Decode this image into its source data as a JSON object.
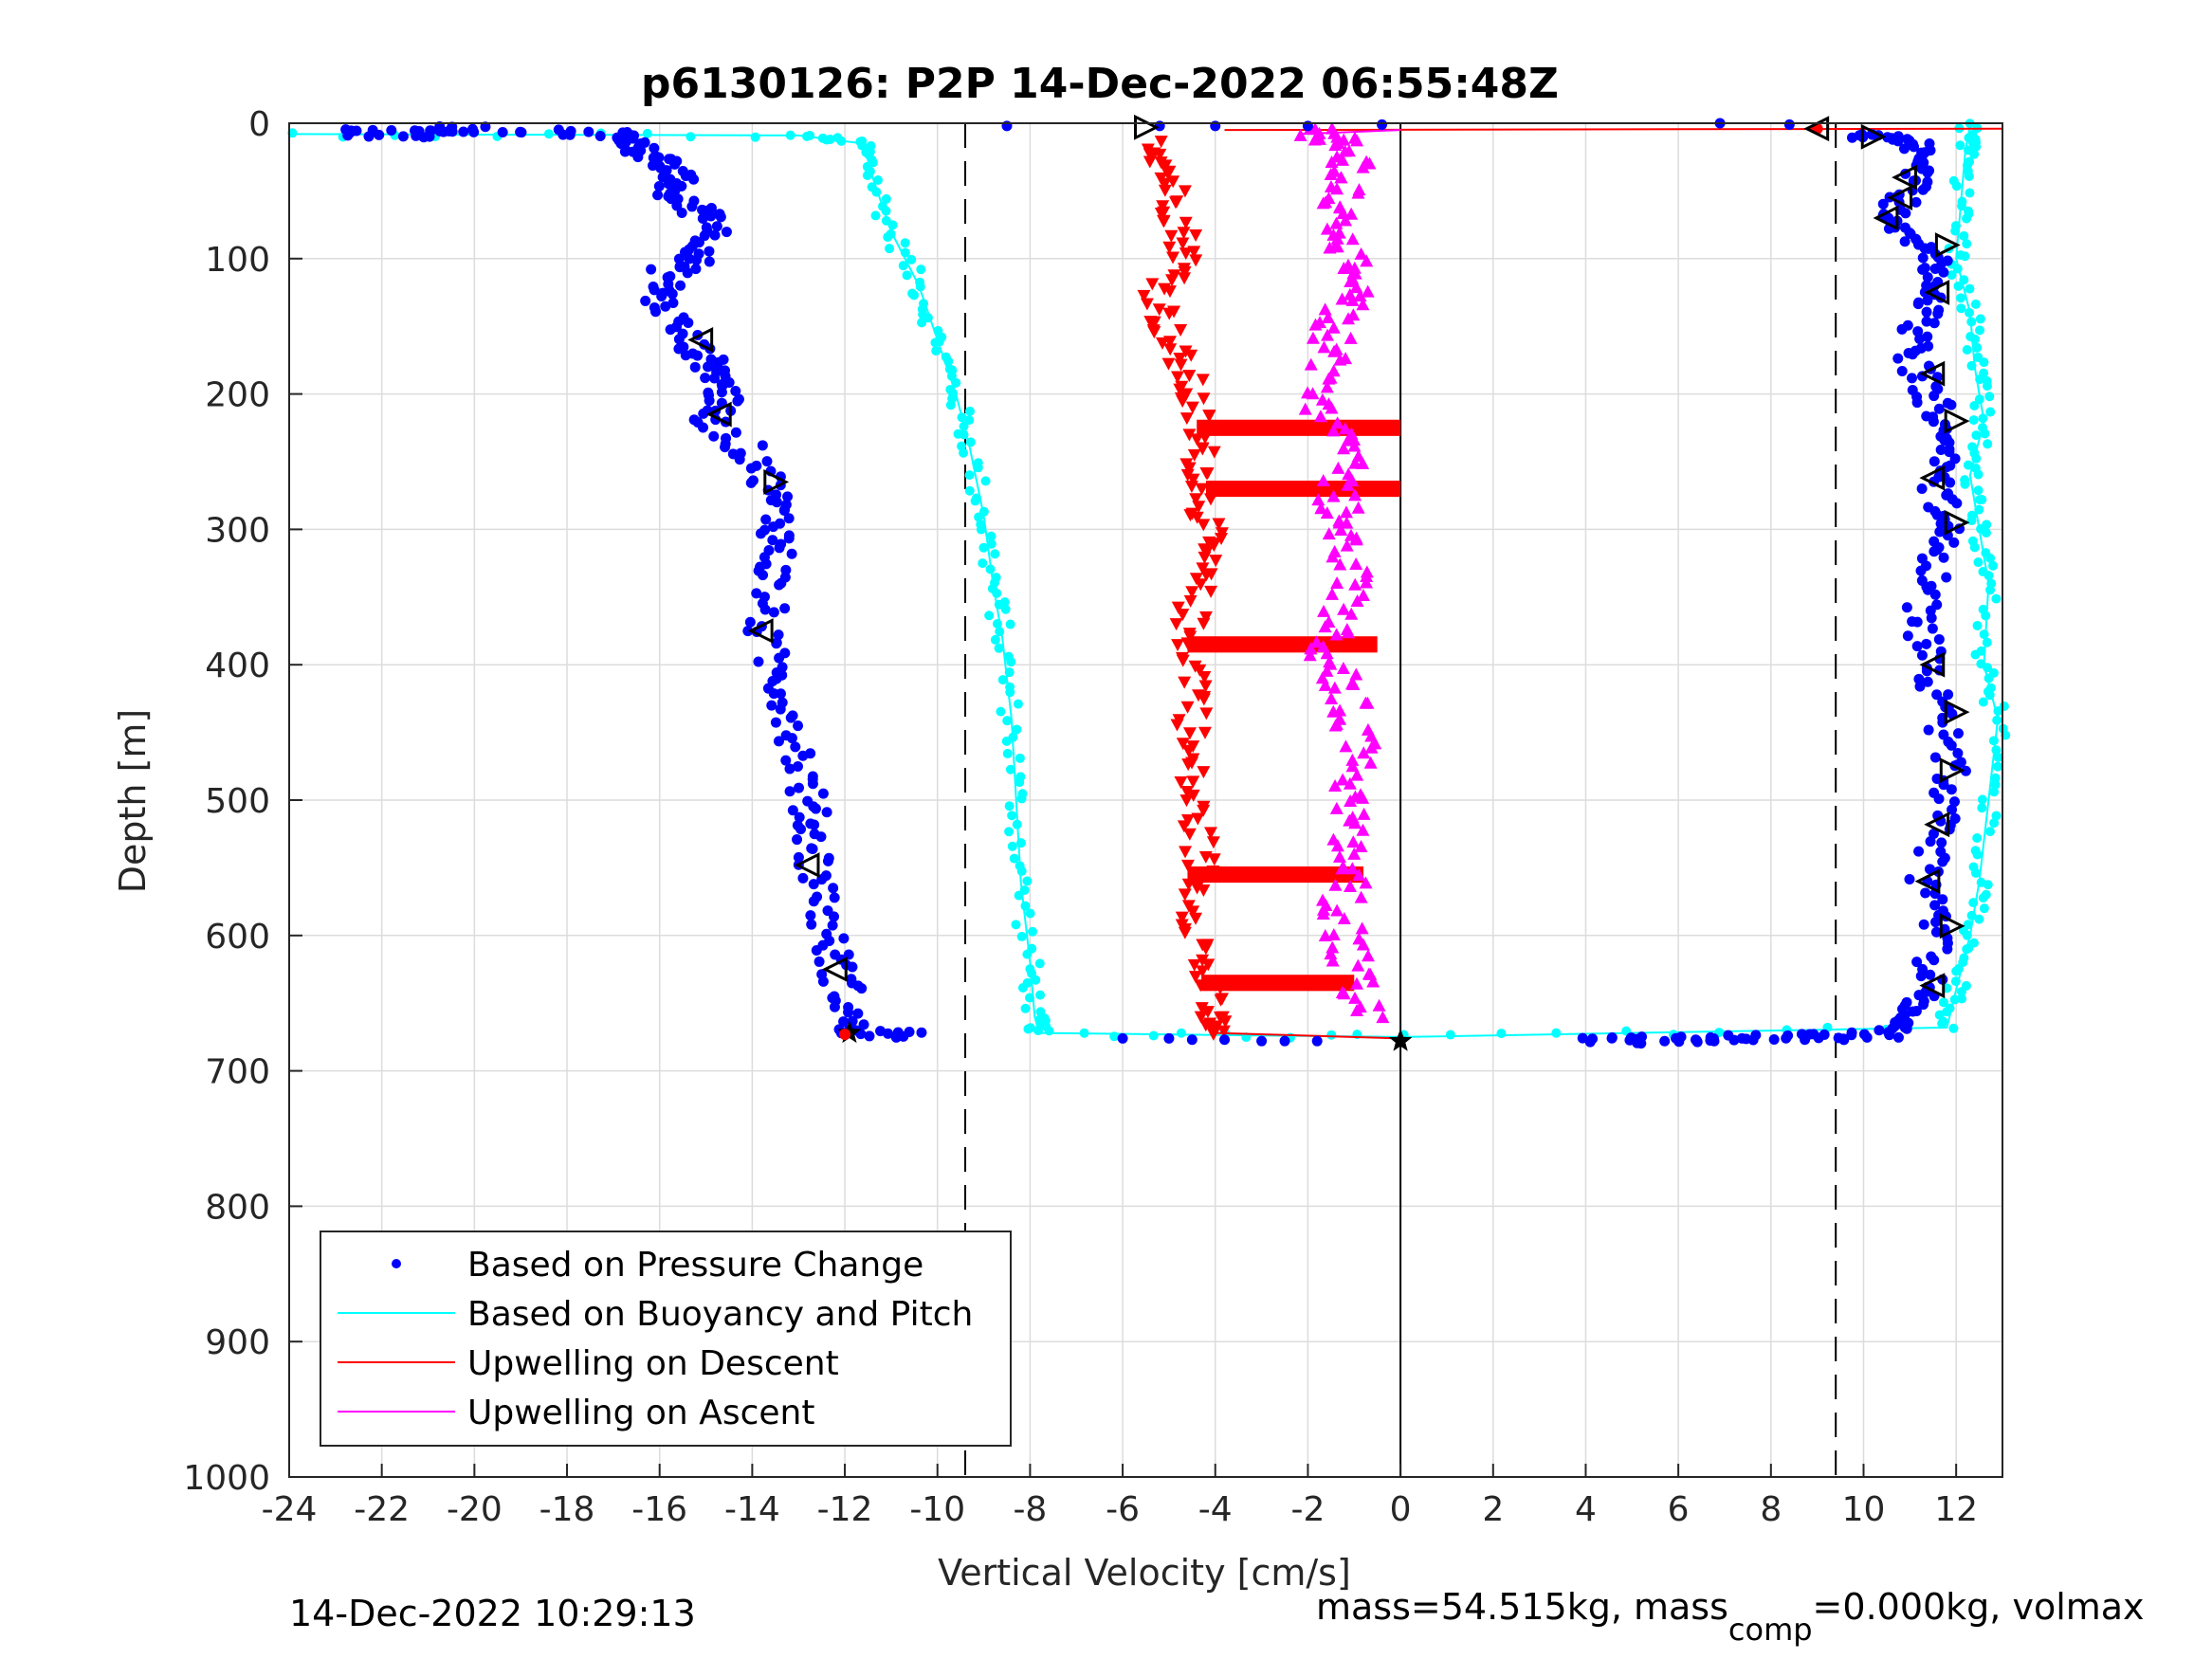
{
  "chart_data": {
    "type": "scatter",
    "title": "p6130126: P2P 14-Dec-2022 06:55:48Z",
    "xlabel": "Vertical Velocity [cm/s]",
    "ylabel": "Depth [m]",
    "xlim": [
      -24,
      13
    ],
    "ylim": [
      0,
      1000
    ],
    "y_reversed": true,
    "grid": true,
    "x_ticks": [
      -24,
      -22,
      -20,
      -18,
      -16,
      -14,
      -12,
      -10,
      -8,
      -6,
      -4,
      -2,
      0,
      2,
      4,
      6,
      8,
      10,
      12
    ],
    "y_ticks": [
      0,
      100,
      200,
      300,
      400,
      500,
      600,
      700,
      800,
      900,
      1000
    ],
    "reference_lines": {
      "dashed_x": [
        -9.4,
        9.4
      ],
      "solid_x": [
        0
      ]
    },
    "legend_position": "bottom-left",
    "series": [
      {
        "name": "Based on Pressure Change",
        "color": "#0000ff",
        "marker": "dot",
        "descent": [
          [
            -23,
            7
          ],
          [
            -21.2,
            8
          ],
          [
            -20.5,
            4
          ],
          [
            -17,
            8
          ],
          [
            -16.5,
            15
          ],
          [
            -16.2,
            25
          ],
          [
            -15.6,
            40
          ],
          [
            -15.8,
            55
          ],
          [
            -14.7,
            70
          ],
          [
            -15.0,
            95
          ],
          [
            -15.8,
            110
          ],
          [
            -16.0,
            130
          ],
          [
            -15.4,
            160
          ],
          [
            -14.8,
            180
          ],
          [
            -14.6,
            200
          ],
          [
            -14.9,
            220
          ],
          [
            -13.8,
            250
          ],
          [
            -13.5,
            280
          ],
          [
            -13.4,
            310
          ],
          [
            -13.6,
            340
          ],
          [
            -13.8,
            380
          ],
          [
            -13.3,
            420
          ],
          [
            -13.0,
            460
          ],
          [
            -12.8,
            500
          ],
          [
            -12.7,
            530
          ],
          [
            -12.5,
            570
          ],
          [
            -12.3,
            610
          ],
          [
            -12.0,
            640
          ],
          [
            -11.9,
            672
          ],
          [
            -10.5,
            674
          ]
        ],
        "ascent": [
          [
            4,
            678
          ],
          [
            5.5,
            677
          ],
          [
            7,
            676
          ],
          [
            9,
            675
          ],
          [
            10.5,
            673
          ],
          [
            11.0,
            660
          ],
          [
            11.4,
            640
          ],
          [
            11.5,
            600
          ],
          [
            11.3,
            560
          ],
          [
            11.6,
            520
          ],
          [
            11.9,
            480
          ],
          [
            11.7,
            440
          ],
          [
            11.4,
            400
          ],
          [
            11.2,
            360
          ],
          [
            11.6,
            320
          ],
          [
            11.8,
            290
          ],
          [
            11.5,
            260
          ],
          [
            11.9,
            230
          ],
          [
            11.4,
            200
          ],
          [
            11.0,
            170
          ],
          [
            11.3,
            140
          ],
          [
            11.6,
            110
          ],
          [
            11.2,
            90
          ],
          [
            10.6,
            70
          ],
          [
            11.0,
            50
          ],
          [
            11.5,
            25
          ],
          [
            10.8,
            10
          ],
          [
            9.9,
            8
          ]
        ]
      },
      {
        "name": "Based on Buoyancy and Pitch",
        "color": "#00ffff",
        "marker": "line",
        "descent": [
          [
            -24,
            8
          ],
          [
            -13,
            9
          ],
          [
            -11.6,
            15
          ],
          [
            -11.4,
            40
          ],
          [
            -11.0,
            80
          ],
          [
            -10.4,
            120
          ],
          [
            -10.0,
            160
          ],
          [
            -9.6,
            200
          ],
          [
            -9.3,
            240
          ],
          [
            -9.0,
            290
          ],
          [
            -8.8,
            340
          ],
          [
            -8.6,
            380
          ],
          [
            -8.4,
            440
          ],
          [
            -8.3,
            500
          ],
          [
            -8.2,
            560
          ],
          [
            -8.0,
            620
          ],
          [
            -7.9,
            660
          ],
          [
            -7.8,
            672
          ],
          [
            0,
            675
          ]
        ],
        "ascent": [
          [
            0,
            675
          ],
          [
            11.8,
            668
          ],
          [
            12.0,
            640
          ],
          [
            12.3,
            600
          ],
          [
            12.5,
            560
          ],
          [
            12.7,
            500
          ],
          [
            12.9,
            440
          ],
          [
            12.6,
            400
          ],
          [
            12.7,
            340
          ],
          [
            12.5,
            300
          ],
          [
            12.3,
            260
          ],
          [
            12.6,
            220
          ],
          [
            12.4,
            180
          ],
          [
            12.3,
            140
          ],
          [
            12.0,
            100
          ],
          [
            12.1,
            60
          ],
          [
            12.2,
            20
          ],
          [
            12.3,
            2
          ]
        ]
      },
      {
        "name": "Upwelling on Descent",
        "color": "#ff0000",
        "marker": "triangle-down",
        "profile": [
          [
            -5.2,
            15
          ],
          [
            -5.0,
            40
          ],
          [
            -4.8,
            70
          ],
          [
            -4.6,
            100
          ],
          [
            -5.2,
            130
          ],
          [
            -5.0,
            160
          ],
          [
            -4.6,
            190
          ],
          [
            -4.4,
            220
          ],
          [
            -4.3,
            250
          ],
          [
            -4.2,
            280
          ],
          [
            -4.2,
            310
          ],
          [
            -4.4,
            340
          ],
          [
            -4.6,
            380
          ],
          [
            -4.3,
            420
          ],
          [
            -4.6,
            460
          ],
          [
            -4.5,
            500
          ],
          [
            -4.3,
            540
          ],
          [
            -4.4,
            580
          ],
          [
            -4.3,
            620
          ],
          [
            -4.1,
            660
          ],
          [
            -4.0,
            672
          ]
        ],
        "bands": [
          [
            -4.4,
            0,
            225
          ],
          [
            -4.2,
            0,
            270
          ],
          [
            -4.6,
            -0.5,
            385
          ],
          [
            -4.6,
            -0.8,
            555
          ],
          [
            -4.3,
            -1.0,
            635
          ]
        ]
      },
      {
        "name": "Upwelling on Ascent",
        "color": "#ff00ff",
        "marker": "triangle-up",
        "profile": [
          [
            -0.8,
            660
          ],
          [
            -1.1,
            620
          ],
          [
            -1.3,
            580
          ],
          [
            -1.0,
            540
          ],
          [
            -1.2,
            500
          ],
          [
            -0.9,
            460
          ],
          [
            -1.1,
            420
          ],
          [
            -1.6,
            390
          ],
          [
            -1.2,
            350
          ],
          [
            -1.1,
            310
          ],
          [
            -1.4,
            280
          ],
          [
            -1.2,
            240
          ],
          [
            -1.9,
            200
          ],
          [
            -1.5,
            160
          ],
          [
            -1.2,
            130
          ],
          [
            -1.0,
            100
          ],
          [
            -1.5,
            70
          ],
          [
            -1.2,
            40
          ],
          [
            -1.0,
            15
          ],
          [
            -2.0,
            5
          ]
        ]
      }
    ]
  },
  "footer": {
    "timestamp": "14-Dec-2022 10:29:13",
    "mass_prefix": "mass=54.515kg, mass",
    "mass_sub": "comp",
    "mass_suffix": "=0.000kg, volmax"
  }
}
